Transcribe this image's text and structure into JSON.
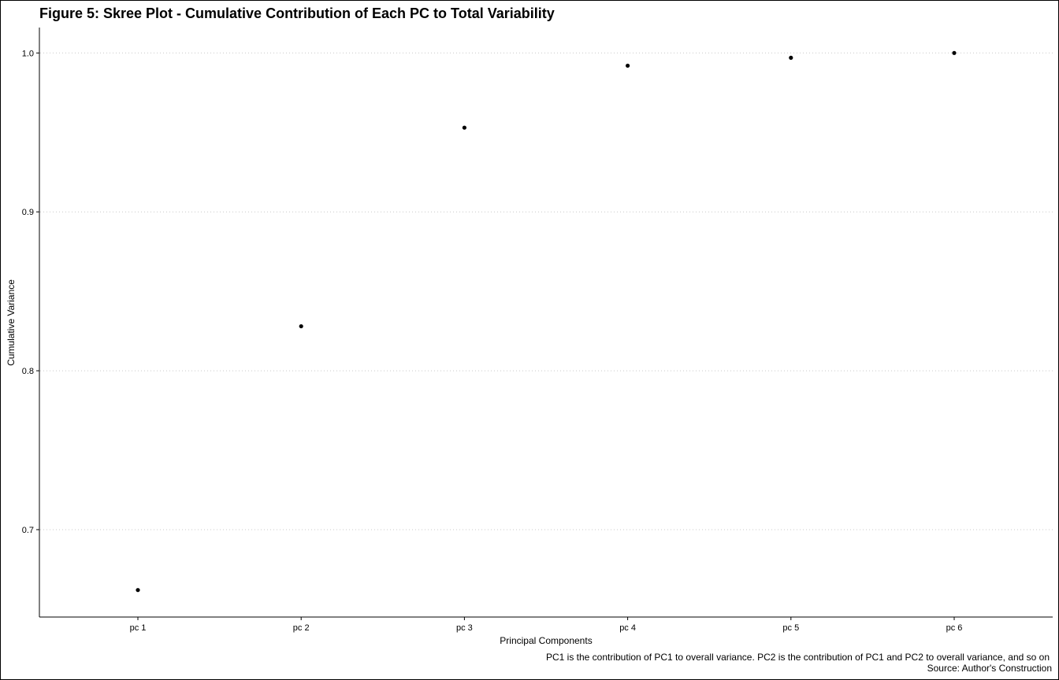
{
  "chart_data": {
    "type": "scatter",
    "title": "Figure 5: Skree Plot - Cumulative Contribution of Each PC to Total Variability",
    "xlabel": "Principal Components",
    "ylabel": "Cumulative Variance",
    "categories": [
      "pc 1",
      "pc 2",
      "pc 3",
      "pc 4",
      "pc 5",
      "pc 6"
    ],
    "values": [
      0.662,
      0.828,
      0.953,
      0.992,
      0.997,
      1.0
    ],
    "ylim": [
      0.645,
      1.016
    ],
    "yticks": [
      0.7,
      0.8,
      0.9,
      1.0
    ],
    "ytick_labels": [
      "0.7",
      "0.8",
      "0.9",
      "1.0"
    ],
    "grid": "horizontal dotted",
    "legend": "none",
    "caption_lines": [
      "PC1 is the contribution of PC1 to overall variance. PC2 is the contribution of PC1 and PC2 to overall variance, and so on",
      "Source: Author's Construction"
    ],
    "colors": {
      "point": "#000000",
      "grid": "#c8c8c8",
      "axis": "#000000"
    }
  }
}
